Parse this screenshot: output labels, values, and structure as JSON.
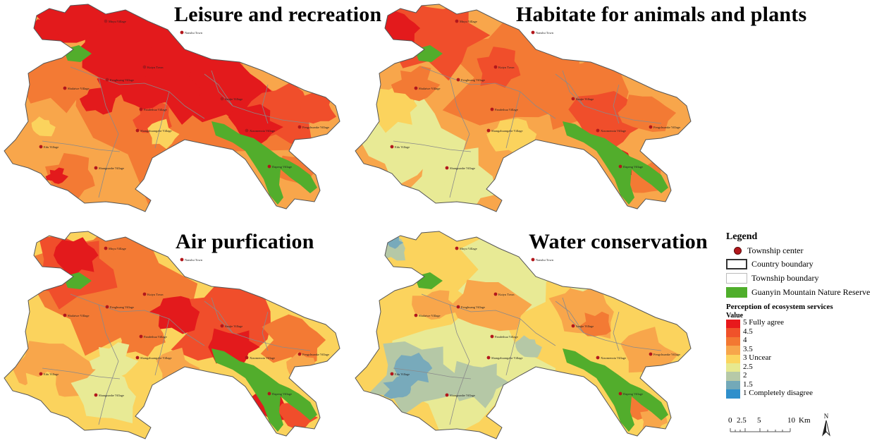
{
  "panels": [
    {
      "id": "leisure",
      "title": "Leisure and recreation",
      "dominant": "red"
    },
    {
      "id": "habitat",
      "title": "Habitate for animals and plants",
      "dominant": "orange"
    },
    {
      "id": "air",
      "title": "Air purfication",
      "dominant": "mixed"
    },
    {
      "id": "water",
      "title": "Water conservation",
      "dominant": "yellow"
    }
  ],
  "villages": {
    "north": "Muyu Village",
    "northeast": "Nanshu Town",
    "town": "Kuiyu Town",
    "west": "Shalaiwe Village",
    "center": "Fenghuang Village",
    "mid": "Pandeihua Village",
    "southcenter": "Shangzhuangzhe Village",
    "east": "Sanjie Village",
    "farEast": "Fengchuanke Village",
    "southeast": "Dapeng Village",
    "southwest": "Edu Village",
    "south": "Shangnanhe Village",
    "southeast2": "Xiaomenxia Village"
  },
  "legend": {
    "title": "Legend",
    "township_center": "Township center",
    "country_boundary": "Country boundary",
    "township_boundary": "Township boundary",
    "nature_reserve": "Guanyin Mountain Nature Reserve",
    "perception_title": "Perception of ecosystem services",
    "value_label": "Value",
    "classes": [
      {
        "label": "5  Fully agree",
        "color": "#e8191c"
      },
      {
        "label": "4.5",
        "color": "#f0522a"
      },
      {
        "label": "4",
        "color": "#f37832"
      },
      {
        "label": "3.5",
        "color": "#f7a64b"
      },
      {
        "label": "3  Uncear",
        "color": "#fbd55e"
      },
      {
        "label": "2.5",
        "color": "#e7e98f"
      },
      {
        "label": "2",
        "color": "#b6c9a8"
      },
      {
        "label": "1.5",
        "color": "#73a9b8"
      },
      {
        "label": "1  Completely disagree",
        "color": "#2f8fcb"
      }
    ],
    "reserve_color": "#4fae2b",
    "township_center_color": "#b2171c"
  },
  "scale": {
    "ticks": [
      "0",
      "2.5",
      "5",
      "10"
    ],
    "unit": "Km",
    "north": "N"
  }
}
